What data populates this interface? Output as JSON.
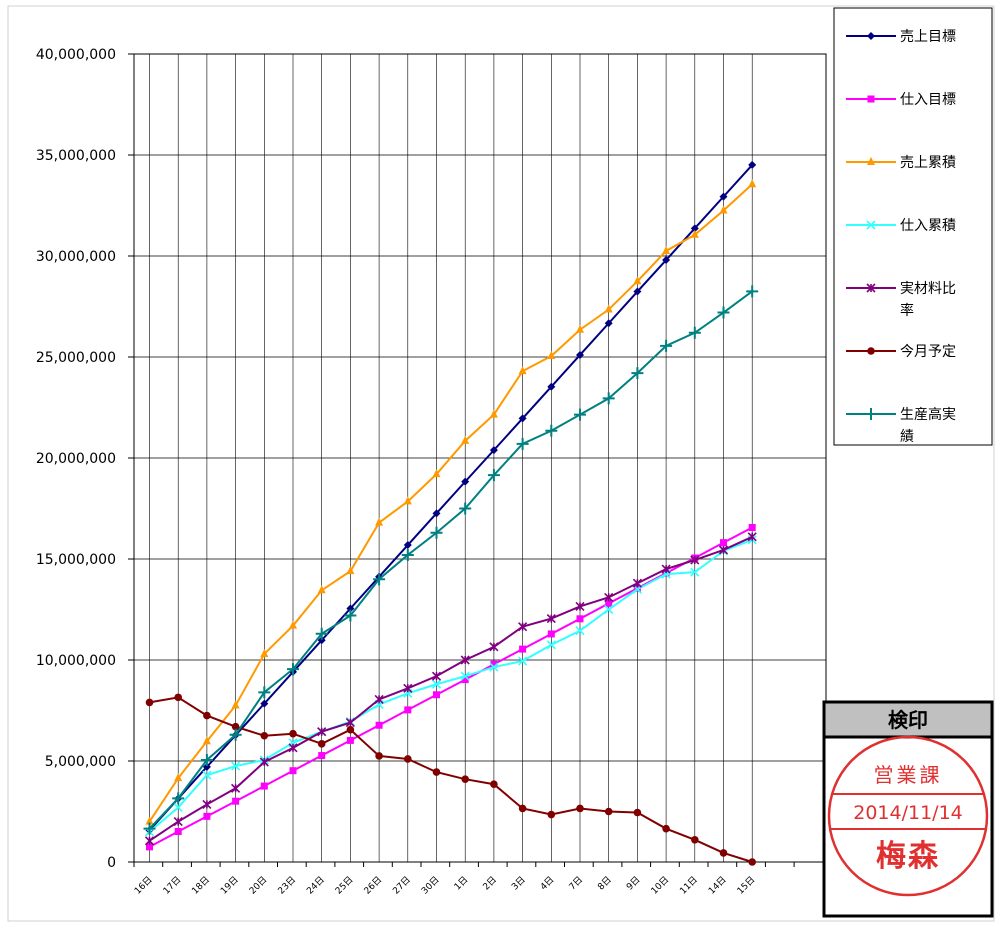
{
  "chart_data": {
    "type": "line",
    "title": "",
    "xlabel": "",
    "ylabel": "",
    "categories": [
      "16日",
      "17日",
      "18日",
      "19日",
      "20日",
      "23日",
      "24日",
      "25日",
      "26日",
      "27日",
      "30日",
      "1日",
      "2日",
      "3日",
      "4日",
      "7日",
      "8日",
      "9日",
      "10日",
      "11日",
      "14日",
      "15日"
    ],
    "yticks": [
      "0",
      "5,000,000",
      "10,000,000",
      "15,000,000",
      "20,000,000",
      "25,000,000",
      "30,000,000",
      "35,000,000",
      "40,000,000"
    ],
    "ylim": [
      0,
      40000000
    ],
    "grid": true,
    "legend_position": "right",
    "series": [
      {
        "name": "売上目標",
        "color": "#000080",
        "marker": "diamond",
        "values": [
          1570000,
          3140000,
          4710000,
          6280000,
          7840000,
          9410000,
          10980000,
          12550000,
          14120000,
          15690000,
          17260000,
          18830000,
          20390000,
          21960000,
          23530000,
          25100000,
          26670000,
          28240000,
          29800000,
          31370000,
          32940000,
          34510000
        ]
      },
      {
        "name": "仕入目標",
        "color": "#ff00ff",
        "marker": "square",
        "values": [
          750000,
          1510000,
          2260000,
          3010000,
          3760000,
          4520000,
          5270000,
          6020000,
          6770000,
          7530000,
          8280000,
          9030000,
          9790000,
          10540000,
          11290000,
          12040000,
          12800000,
          13550000,
          14300000,
          15050000,
          15810000,
          16560000
        ]
      },
      {
        "name": "売上累積",
        "color": "#ff9900",
        "marker": "triangle",
        "values": [
          2000000,
          4150000,
          5980000,
          7750000,
          10300000,
          11700000,
          13450000,
          14400000,
          16800000,
          17850000,
          19200000,
          20850000,
          22150000,
          24300000,
          25050000,
          26350000,
          27350000,
          28750000,
          30250000,
          31050000,
          32250000,
          33550000
        ]
      },
      {
        "name": "仕入累積",
        "color": "#33ffff",
        "marker": "x",
        "values": [
          1500000,
          2700000,
          4300000,
          4750000,
          5050000,
          5900000,
          6450000,
          6950000,
          7800000,
          8350000,
          8800000,
          9200000,
          9650000,
          9950000,
          10750000,
          11450000,
          12500000,
          13500000,
          14250000,
          14350000,
          15400000,
          15950000
        ]
      },
      {
        "name": "実材料比率",
        "color": "#800080",
        "marker": "star",
        "values": [
          1050000,
          2000000,
          2850000,
          3650000,
          4950000,
          5650000,
          6450000,
          6900000,
          8050000,
          8600000,
          9200000,
          10000000,
          10650000,
          11650000,
          12050000,
          12650000,
          13100000,
          13800000,
          14500000,
          14950000,
          15450000,
          16100000
        ]
      },
      {
        "name": "今月予定",
        "color": "#800000",
        "marker": "circle",
        "values": [
          7900000,
          8150000,
          7250000,
          6700000,
          6250000,
          6350000,
          5850000,
          6550000,
          5250000,
          5100000,
          4450000,
          4100000,
          3850000,
          2650000,
          2350000,
          2650000,
          2500000,
          2450000,
          1650000,
          1100000,
          450000,
          0
        ]
      },
      {
        "name": "生産高実績",
        "color": "#008080",
        "marker": "plus",
        "values": [
          1650000,
          3150000,
          5050000,
          6300000,
          8400000,
          9550000,
          11300000,
          12200000,
          14000000,
          15200000,
          16300000,
          17500000,
          19150000,
          20700000,
          21350000,
          22150000,
          22950000,
          24200000,
          25550000,
          26200000,
          27200000,
          28250000
        ]
      }
    ]
  },
  "legend": {
    "items": [
      {
        "lines": [
          "売上目標"
        ]
      },
      {
        "lines": [
          "仕入目標"
        ]
      },
      {
        "lines": [
          "売上累積"
        ]
      },
      {
        "lines": [
          "仕入累積"
        ]
      },
      {
        "lines": [
          "実材料比",
          "率"
        ]
      },
      {
        "lines": [
          "今月予定"
        ]
      },
      {
        "lines": [
          "生産高実",
          "績"
        ]
      }
    ]
  },
  "stamp": {
    "header": "検印",
    "department": "営業課",
    "date": "2014/11/14",
    "name": "梅森",
    "ink_color": "#e03030"
  }
}
